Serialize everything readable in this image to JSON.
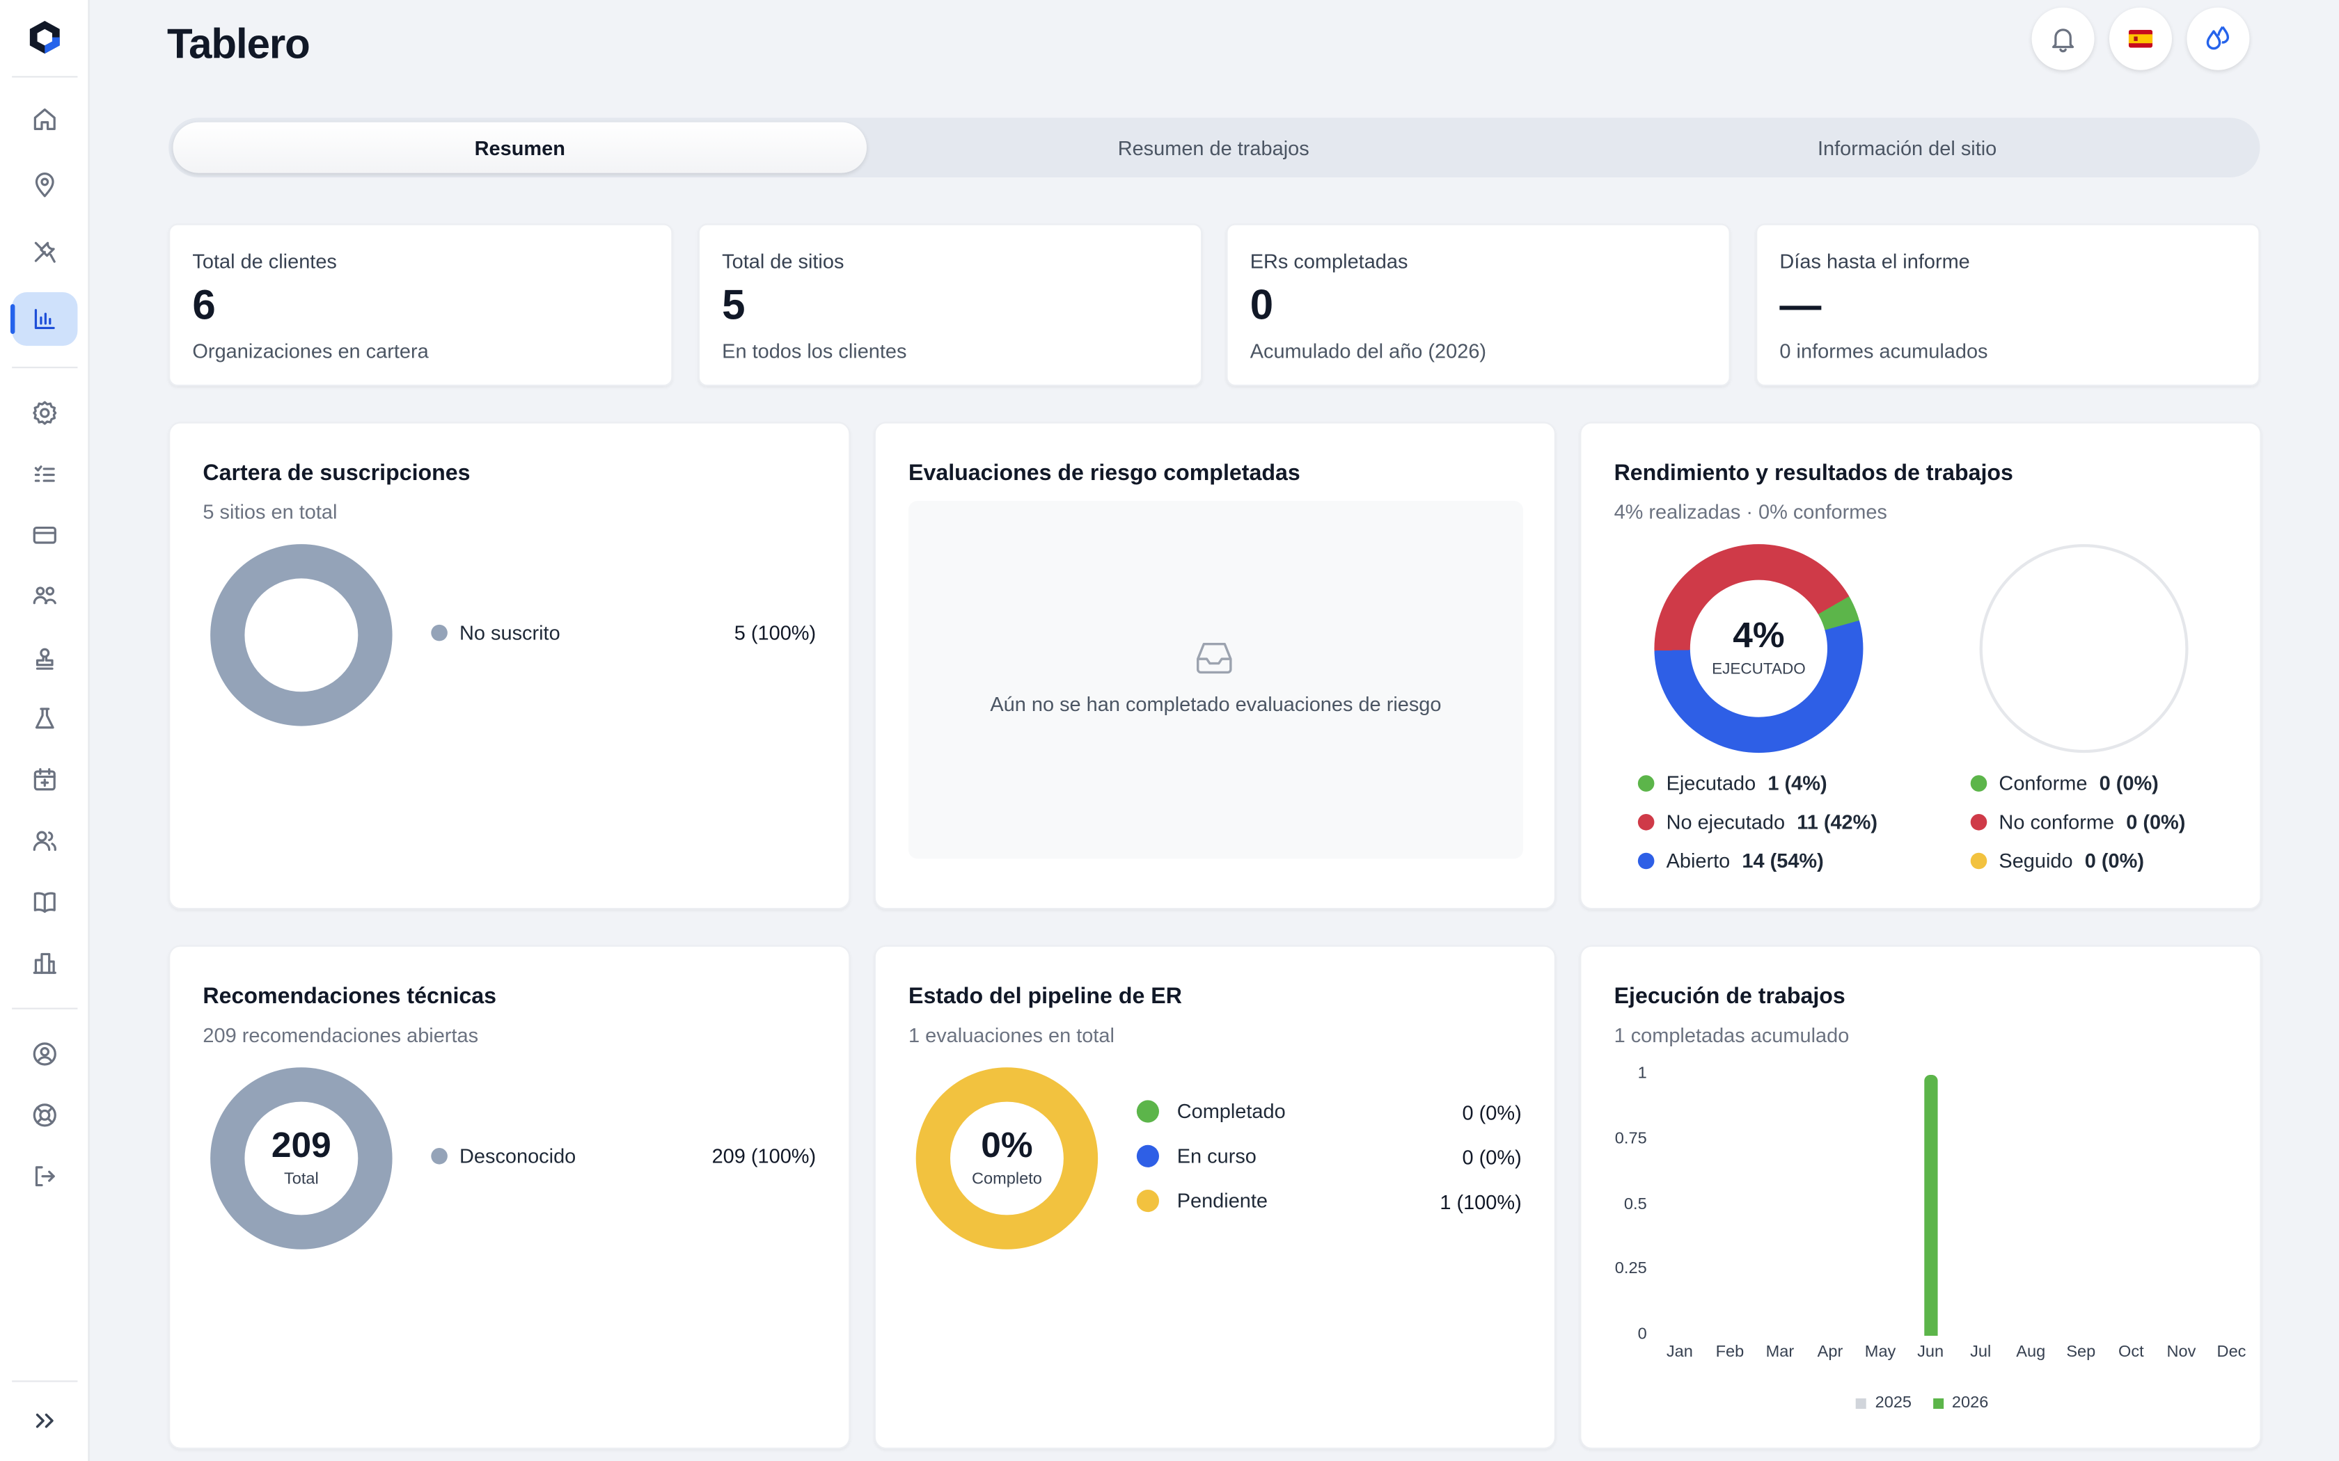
{
  "header": {
    "title": "Tablero"
  },
  "tabs": [
    {
      "label": "Resumen",
      "active": true
    },
    {
      "label": "Resumen de trabajos",
      "active": false
    },
    {
      "label": "Información del sitio",
      "active": false
    }
  ],
  "sidebar": {
    "items": [
      {
        "icon": "home-icon"
      },
      {
        "icon": "map-pin-icon"
      },
      {
        "icon": "tools-icon"
      },
      {
        "icon": "bar-chart-icon",
        "active": true
      },
      {
        "icon": "settings-icon"
      },
      {
        "icon": "checklist-icon"
      },
      {
        "icon": "card-icon"
      },
      {
        "icon": "team-icon"
      },
      {
        "icon": "stamp-icon"
      },
      {
        "icon": "flask-icon"
      },
      {
        "icon": "calendar-icon"
      },
      {
        "icon": "users-icon"
      },
      {
        "icon": "book-icon"
      },
      {
        "icon": "building-icon"
      },
      {
        "icon": "account-icon"
      },
      {
        "icon": "help-icon"
      },
      {
        "icon": "logout-icon"
      }
    ]
  },
  "kpis": [
    {
      "label": "Total de clientes",
      "value": "6",
      "sub": "Organizaciones en cartera"
    },
    {
      "label": "Total de sitios",
      "value": "5",
      "sub": "En todos los clientes"
    },
    {
      "label": "ERs completadas",
      "value": "0",
      "sub": "Acumulado del año (2026)"
    },
    {
      "label": "Días hasta el informe",
      "value": "—",
      "sub": "0 informes acumulados"
    }
  ],
  "subscriptions": {
    "title": "Cartera de suscripciones",
    "subtitle": "5 sitios en total",
    "legend": [
      {
        "label": "No suscrito",
        "value": "5 (100%)",
        "color": "#94a3b8"
      }
    ]
  },
  "risk": {
    "title": "Evaluaciones de riesgo completadas",
    "empty": "Aún no se han completado evaluaciones de riesgo"
  },
  "performance": {
    "title": "Rendimiento y resultados de trabajos",
    "subtitle": "4% realizadas · 0% conformes",
    "center_value": "4%",
    "center_label": "EJECUTADO",
    "left_legend": [
      {
        "label": "Ejecutado",
        "value": "1 (4%)",
        "color": "#5cb54a",
        "fraction": 0.04
      },
      {
        "label": "No ejecutado",
        "value": "11 (42%)",
        "color": "#cf3a48",
        "fraction": 0.42
      },
      {
        "label": "Abierto",
        "value": "14 (54%)",
        "color": "#2e5fe6",
        "fraction": 0.54
      }
    ],
    "right_legend": [
      {
        "label": "Conforme",
        "value": "0 (0%)",
        "color": "#5cb54a"
      },
      {
        "label": "No conforme",
        "value": "0 (0%)",
        "color": "#cf3a48"
      },
      {
        "label": "Seguido",
        "value": "0 (0%)",
        "color": "#f2c23f"
      }
    ]
  },
  "recommendations": {
    "title": "Recomendaciones técnicas",
    "subtitle": "209 recomendaciones abiertas",
    "center_value": "209",
    "center_label": "Total",
    "legend": [
      {
        "label": "Desconocido",
        "value": "209 (100%)",
        "color": "#94a3b8"
      }
    ]
  },
  "pipeline": {
    "title": "Estado del pipeline de ER",
    "subtitle": "1 evaluaciones en total",
    "center_value": "0%",
    "center_label": "Completo",
    "legend": [
      {
        "label": "Completado",
        "value": "0 (0%)",
        "color": "#5cb54a"
      },
      {
        "label": "En curso",
        "value": "0 (0%)",
        "color": "#2e5fe6"
      },
      {
        "label": "Pendiente",
        "value": "1 (100%)",
        "color": "#f2c23f"
      }
    ]
  },
  "execution": {
    "title": "Ejecución de trabajos",
    "subtitle": "1 completadas acumulado"
  },
  "chart_data": {
    "type": "bar",
    "categories": [
      "Jan",
      "Feb",
      "Mar",
      "Apr",
      "May",
      "Jun",
      "Jul",
      "Aug",
      "Sep",
      "Oct",
      "Nov",
      "Dec"
    ],
    "yticks": [
      "0",
      "0.25",
      "0.5",
      "0.75",
      "1"
    ],
    "ylim": [
      0,
      1
    ],
    "series": [
      {
        "name": "2025",
        "color": "#d1d5db",
        "values": [
          0,
          0,
          0,
          0,
          0,
          0,
          0,
          0,
          0,
          0,
          0,
          0
        ]
      },
      {
        "name": "2026",
        "color": "#5cb54a",
        "values": [
          0,
          0,
          0,
          0,
          0,
          1,
          0,
          0,
          0,
          0,
          0,
          0
        ]
      }
    ],
    "legend": "bottom-center"
  }
}
